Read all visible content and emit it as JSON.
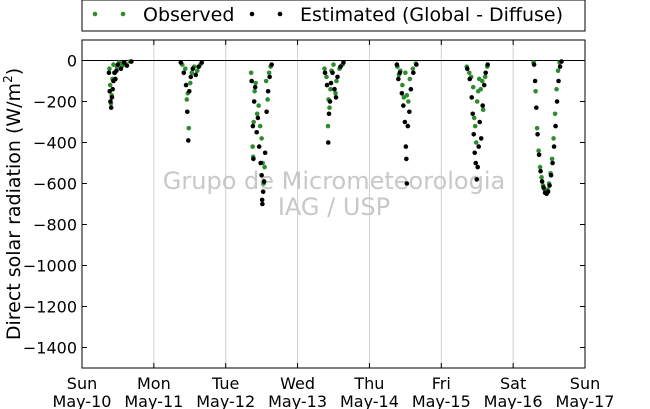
{
  "chart_data": {
    "type": "scatter",
    "title": "",
    "xlabel": "",
    "ylabel": "Direct solar radiation (W/m²)",
    "ylabel_parts": {
      "main": "Direct solar radiation (W/m",
      "sup": "2",
      "close": ")"
    },
    "ylim": [
      -1500,
      100
    ],
    "yticks": [
      0,
      -200,
      -400,
      -600,
      -800,
      -1000,
      -1200,
      -1400
    ],
    "ytick_labels": [
      "0",
      "−200",
      "−400",
      "−600",
      "−800",
      "−1000",
      "−1200",
      "−1400"
    ],
    "xlim": [
      "2016-05-10",
      "2016-05-17"
    ],
    "xticks": [
      {
        "day": "Sun",
        "date": "May-10"
      },
      {
        "day": "Mon",
        "date": "May-11"
      },
      {
        "day": "Tue",
        "date": "May-12"
      },
      {
        "day": "Wed",
        "date": "May-13"
      },
      {
        "day": "Thu",
        "date": "May-14"
      },
      {
        "day": "Fri",
        "date": "May-15"
      },
      {
        "day": "Sat",
        "date": "May-16"
      },
      {
        "day": "Sun",
        "date": "May-17"
      }
    ],
    "grid": "vertical",
    "legend_position": "top (above plot)",
    "series": [
      {
        "name": "Observed",
        "color": "#2e8b2e",
        "points": [
          [
            "2016-05-10 09:10",
            -40
          ],
          [
            "2016-05-10 09:25",
            -120
          ],
          [
            "2016-05-10 09:40",
            -210
          ],
          [
            "2016-05-10 09:55",
            -170
          ],
          [
            "2016-05-10 10:10",
            -90
          ],
          [
            "2016-05-10 10:30",
            -20
          ],
          [
            "2016-05-10 11:00",
            -60
          ],
          [
            "2016-05-10 11:40",
            -30
          ],
          [
            "2016-05-10 12:30",
            -10
          ],
          [
            "2016-05-10 13:30",
            -25
          ],
          [
            "2016-05-10 14:30",
            -15
          ],
          [
            "2016-05-10 16:00",
            -5
          ],
          [
            "2016-05-11 09:30",
            -20
          ],
          [
            "2016-05-11 10:30",
            -40
          ],
          [
            "2016-05-11 11:00",
            -190
          ],
          [
            "2016-05-11 11:20",
            -160
          ],
          [
            "2016-05-11 11:40",
            -330
          ],
          [
            "2016-05-11 12:10",
            -110
          ],
          [
            "2016-05-11 12:40",
            -60
          ],
          [
            "2016-05-11 13:30",
            -30
          ],
          [
            "2016-05-11 14:30",
            -50
          ],
          [
            "2016-05-11 15:30",
            -20
          ],
          [
            "2016-05-12 08:30",
            -60
          ],
          [
            "2016-05-12 09:00",
            -420
          ],
          [
            "2016-05-12 09:10",
            -470
          ],
          [
            "2016-05-12 09:20",
            -300
          ],
          [
            "2016-05-12 09:40",
            -150
          ],
          [
            "2016-05-12 10:00",
            -110
          ],
          [
            "2016-05-12 10:30",
            -260
          ],
          [
            "2016-05-12 11:00",
            -220
          ],
          [
            "2016-05-12 11:30",
            -320
          ],
          [
            "2016-05-12 12:00",
            -380
          ],
          [
            "2016-05-12 12:20",
            -500
          ],
          [
            "2016-05-12 12:40",
            -600
          ],
          [
            "2016-05-12 13:00",
            -520
          ],
          [
            "2016-05-12 13:30",
            -100
          ],
          [
            "2016-05-12 14:00",
            -190
          ],
          [
            "2016-05-12 14:30",
            -60
          ],
          [
            "2016-05-12 15:00",
            -30
          ],
          [
            "2016-05-13 09:00",
            -40
          ],
          [
            "2016-05-13 09:40",
            -80
          ],
          [
            "2016-05-13 10:10",
            -320
          ],
          [
            "2016-05-13 10:20",
            -190
          ],
          [
            "2016-05-13 10:40",
            -230
          ],
          [
            "2016-05-13 11:00",
            -140
          ],
          [
            "2016-05-13 11:20",
            -50
          ],
          [
            "2016-05-13 12:00",
            -20
          ],
          [
            "2016-05-13 12:40",
            -160
          ],
          [
            "2016-05-13 13:00",
            -100
          ],
          [
            "2016-05-13 14:00",
            -40
          ],
          [
            "2016-05-13 15:00",
            -20
          ],
          [
            "2016-05-14 09:20",
            -30
          ],
          [
            "2016-05-14 09:50",
            -70
          ],
          [
            "2016-05-14 10:20",
            -50
          ],
          [
            "2016-05-14 11:00",
            -120
          ],
          [
            "2016-05-14 11:30",
            -180
          ],
          [
            "2016-05-14 12:00",
            -60
          ],
          [
            "2016-05-14 12:30",
            -170
          ],
          [
            "2016-05-14 13:00",
            -200
          ],
          [
            "2016-05-14 13:30",
            -90
          ],
          [
            "2016-05-14 14:30",
            -40
          ],
          [
            "2016-05-14 15:30",
            -15
          ],
          [
            "2016-05-15 08:30",
            -30
          ],
          [
            "2016-05-15 09:20",
            -60
          ],
          [
            "2016-05-15 10:00",
            -80
          ],
          [
            "2016-05-15 10:40",
            -130
          ],
          [
            "2016-05-15 11:00",
            -280
          ],
          [
            "2016-05-15 11:20",
            -320
          ],
          [
            "2016-05-15 11:40",
            -400
          ],
          [
            "2016-05-15 12:00",
            -200
          ],
          [
            "2016-05-15 12:20",
            -150
          ],
          [
            "2016-05-15 12:40",
            -90
          ],
          [
            "2016-05-15 13:10",
            -140
          ],
          [
            "2016-05-15 13:40",
            -100
          ],
          [
            "2016-05-15 14:00",
            -240
          ],
          [
            "2016-05-15 14:40",
            -80
          ],
          [
            "2016-05-15 15:20",
            -30
          ],
          [
            "2016-05-16 06:50",
            -10
          ],
          [
            "2016-05-16 07:30",
            -150
          ],
          [
            "2016-05-16 08:00",
            -330
          ],
          [
            "2016-05-16 08:30",
            -440
          ],
          [
            "2016-05-16 09:00",
            -520
          ],
          [
            "2016-05-16 09:30",
            -570
          ],
          [
            "2016-05-16 10:00",
            -610
          ],
          [
            "2016-05-16 10:30",
            -630
          ],
          [
            "2016-05-16 11:00",
            -640
          ],
          [
            "2016-05-16 11:30",
            -630
          ],
          [
            "2016-05-16 12:00",
            -600
          ],
          [
            "2016-05-16 12:30",
            -550
          ],
          [
            "2016-05-16 13:00",
            -480
          ],
          [
            "2016-05-16 13:30",
            -380
          ],
          [
            "2016-05-16 14:00",
            -260
          ],
          [
            "2016-05-16 14:30",
            -140
          ],
          [
            "2016-05-16 15:00",
            -50
          ],
          [
            "2016-05-16 15:30",
            -10
          ]
        ]
      },
      {
        "name": "Estimated (Global - Diffuse)",
        "color": "#000000",
        "points": [
          [
            "2016-05-10 09:00",
            -60
          ],
          [
            "2016-05-10 09:15",
            -150
          ],
          [
            "2016-05-10 09:30",
            -200
          ],
          [
            "2016-05-10 09:45",
            -230
          ],
          [
            "2016-05-10 10:00",
            -180
          ],
          [
            "2016-05-10 10:15",
            -140
          ],
          [
            "2016-05-10 10:30",
            -100
          ],
          [
            "2016-05-10 10:50",
            -60
          ],
          [
            "2016-05-10 11:10",
            -90
          ],
          [
            "2016-05-10 11:30",
            -50
          ],
          [
            "2016-05-10 12:00",
            -20
          ],
          [
            "2016-05-10 13:00",
            -40
          ],
          [
            "2016-05-10 14:00",
            -10
          ],
          [
            "2016-05-10 15:00",
            -25
          ],
          [
            "2016-05-10 16:30",
            -5
          ],
          [
            "2016-05-11 09:00",
            -10
          ],
          [
            "2016-05-11 10:00",
            -60
          ],
          [
            "2016-05-11 10:45",
            -120
          ],
          [
            "2016-05-11 11:10",
            -250
          ],
          [
            "2016-05-11 11:30",
            -390
          ],
          [
            "2016-05-11 11:50",
            -150
          ],
          [
            "2016-05-11 12:20",
            -80
          ],
          [
            "2016-05-11 13:00",
            -40
          ],
          [
            "2016-05-11 14:00",
            -70
          ],
          [
            "2016-05-11 15:00",
            -30
          ],
          [
            "2016-05-11 16:00",
            -10
          ],
          [
            "2016-05-12 08:40",
            -100
          ],
          [
            "2016-05-12 09:05",
            -320
          ],
          [
            "2016-05-12 09:15",
            -480
          ],
          [
            "2016-05-12 09:30",
            -200
          ],
          [
            "2016-05-12 09:50",
            -130
          ],
          [
            "2016-05-12 10:20",
            -350
          ],
          [
            "2016-05-12 10:45",
            -280
          ],
          [
            "2016-05-12 11:10",
            -420
          ],
          [
            "2016-05-12 11:40",
            -500
          ],
          [
            "2016-05-12 12:00",
            -560
          ],
          [
            "2016-05-12 12:10",
            -680
          ],
          [
            "2016-05-12 12:15",
            -700
          ],
          [
            "2016-05-12 12:30",
            -640
          ],
          [
            "2016-05-12 12:50",
            -590
          ],
          [
            "2016-05-12 13:10",
            -450
          ],
          [
            "2016-05-12 13:40",
            -250
          ],
          [
            "2016-05-12 14:10",
            -150
          ],
          [
            "2016-05-12 14:40",
            -80
          ],
          [
            "2016-05-12 15:20",
            -20
          ],
          [
            "2016-05-13 09:10",
            -60
          ],
          [
            "2016-05-13 09:50",
            -120
          ],
          [
            "2016-05-13 10:15",
            -400
          ],
          [
            "2016-05-13 10:30",
            -260
          ],
          [
            "2016-05-13 10:50",
            -200
          ],
          [
            "2016-05-13 11:10",
            -110
          ],
          [
            "2016-05-13 11:40",
            -60
          ],
          [
            "2016-05-13 12:20",
            -140
          ],
          [
            "2016-05-13 12:50",
            -180
          ],
          [
            "2016-05-13 13:20",
            -80
          ],
          [
            "2016-05-13 14:20",
            -30
          ],
          [
            "2016-05-13 15:20",
            -10
          ],
          [
            "2016-05-14 09:10",
            -20
          ],
          [
            "2016-05-14 09:40",
            -90
          ],
          [
            "2016-05-14 10:10",
            -60
          ],
          [
            "2016-05-14 10:50",
            -160
          ],
          [
            "2016-05-14 11:20",
            -220
          ],
          [
            "2016-05-14 11:50",
            -300
          ],
          [
            "2016-05-14 12:10",
            -420
          ],
          [
            "2016-05-14 12:20",
            -480
          ],
          [
            "2016-05-14 12:30",
            -600
          ],
          [
            "2016-05-14 12:50",
            -320
          ],
          [
            "2016-05-14 13:20",
            -250
          ],
          [
            "2016-05-14 13:50",
            -140
          ],
          [
            "2016-05-14 14:40",
            -60
          ],
          [
            "2016-05-14 15:40",
            -20
          ],
          [
            "2016-05-15 08:40",
            -40
          ],
          [
            "2016-05-15 09:30",
            -90
          ],
          [
            "2016-05-15 10:10",
            -180
          ],
          [
            "2016-05-15 10:30",
            -260
          ],
          [
            "2016-05-15 10:50",
            -360
          ],
          [
            "2016-05-15 11:10",
            -450
          ],
          [
            "2016-05-15 11:30",
            -500
          ],
          [
            "2016-05-15 11:50",
            -580
          ],
          [
            "2016-05-15 12:10",
            -520
          ],
          [
            "2016-05-15 12:30",
            -420
          ],
          [
            "2016-05-15 12:50",
            -300
          ],
          [
            "2016-05-15 13:20",
            -380
          ],
          [
            "2016-05-15 13:50",
            -220
          ],
          [
            "2016-05-15 14:20",
            -120
          ],
          [
            "2016-05-15 14:50",
            -60
          ],
          [
            "2016-05-15 15:30",
            -20
          ],
          [
            "2016-05-16 07:00",
            -20
          ],
          [
            "2016-05-16 07:20",
            -100
          ],
          [
            "2016-05-16 07:45",
            -230
          ],
          [
            "2016-05-16 08:10",
            -360
          ],
          [
            "2016-05-16 08:40",
            -460
          ],
          [
            "2016-05-16 09:10",
            -540
          ],
          [
            "2016-05-16 09:40",
            -590
          ],
          [
            "2016-05-16 10:10",
            -620
          ],
          [
            "2016-05-16 10:40",
            -645
          ],
          [
            "2016-05-16 11:10",
            -650
          ],
          [
            "2016-05-16 11:40",
            -640
          ],
          [
            "2016-05-16 12:10",
            -610
          ],
          [
            "2016-05-16 12:40",
            -560
          ],
          [
            "2016-05-16 13:10",
            -500
          ],
          [
            "2016-05-16 13:40",
            -420
          ],
          [
            "2016-05-16 14:10",
            -320
          ],
          [
            "2016-05-16 14:40",
            -200
          ],
          [
            "2016-05-16 15:10",
            -100
          ],
          [
            "2016-05-16 15:40",
            -30
          ],
          [
            "2016-05-16 16:10",
            -5
          ]
        ]
      }
    ],
    "watermark": [
      "Grupo de Micrometeorologia",
      "IAG / USP"
    ]
  }
}
